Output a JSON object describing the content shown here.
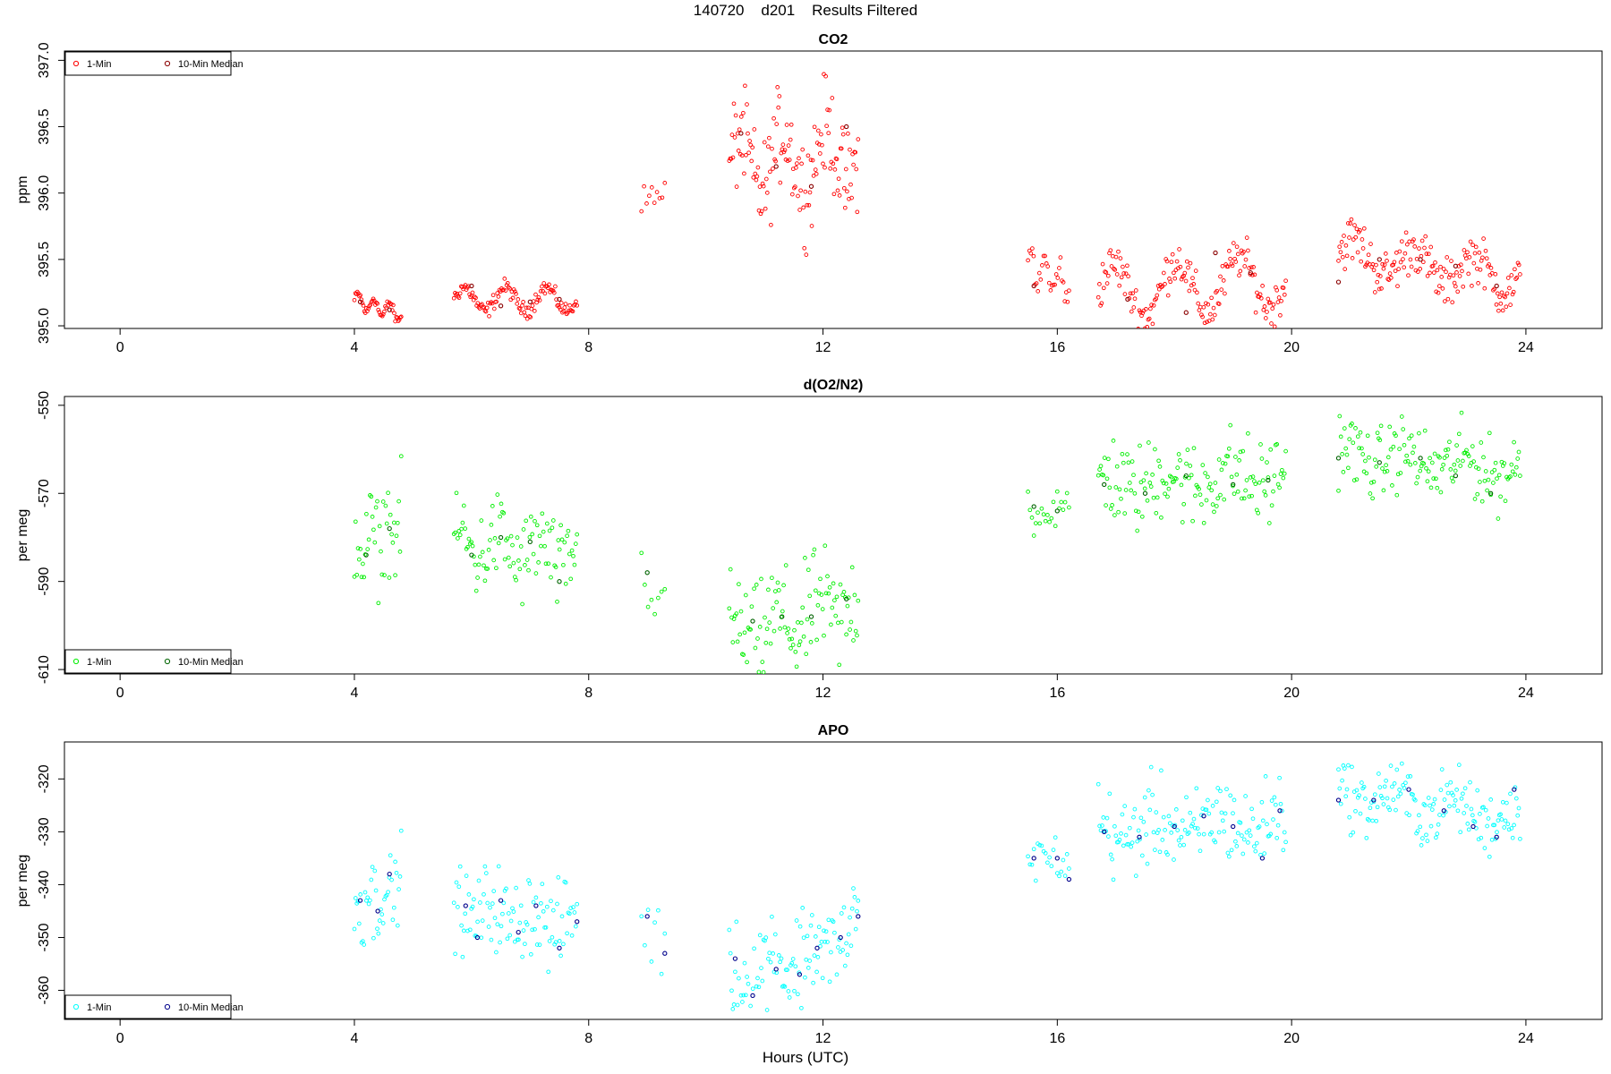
{
  "header": {
    "title": "140720    d201    Results Filtered",
    "x_axis_title": "Hours (UTC)"
  },
  "chart_data": [
    {
      "type": "scatter",
      "title": "CO2",
      "ylabel": "ppm",
      "xlim": [
        -0.95,
        25.3
      ],
      "ylim": [
        394.98,
        397.07
      ],
      "xticks": [
        0,
        4,
        8,
        12,
        16,
        20,
        24
      ],
      "yticks": [
        395.0,
        395.5,
        396.0,
        396.5,
        397.0
      ],
      "ytick_labels": [
        "395.0",
        "395.5",
        "396.0",
        "396.5",
        "397.0"
      ],
      "legend": {
        "position": "top-left",
        "entries": [
          "1-Min",
          "10-Min Median"
        ]
      },
      "colors": {
        "one_min": "#ff0000",
        "median": "#8b0000"
      },
      "series": [
        {
          "name": "1-Min",
          "segments": [
            {
              "x_start": 4.0,
              "x_end": 4.8,
              "count": 48,
              "base": 395.14,
              "amp": 0.06,
              "noise": 0.02,
              "trend": -0.1
            },
            {
              "x_start": 5.7,
              "x_end": 7.8,
              "count": 120,
              "base": 395.2,
              "amp": 0.09,
              "noise": 0.03,
              "trend": 0.0
            },
            {
              "x_start": 8.9,
              "x_end": 9.3,
              "count": 10,
              "base": 395.98,
              "amp": 0.03,
              "noise": 0.04,
              "trend": 0.08
            },
            {
              "x_start": 10.4,
              "x_end": 12.6,
              "count": 140,
              "base": 396.25,
              "amp": 0.22,
              "noise": 0.18,
              "trend": 0.1
            },
            {
              "x_start": 15.5,
              "x_end": 16.2,
              "count": 30,
              "base": 395.38,
              "amp": 0.12,
              "noise": 0.06,
              "trend": -0.15
            },
            {
              "x_start": 16.7,
              "x_end": 19.9,
              "count": 170,
              "base": 395.3,
              "amp": 0.2,
              "noise": 0.08,
              "trend": 0.1
            },
            {
              "x_start": 20.8,
              "x_end": 23.9,
              "count": 170,
              "base": 395.45,
              "amp": 0.12,
              "noise": 0.09,
              "trend": -0.2
            }
          ]
        },
        {
          "name": "10-Min Median",
          "points": [
            [
              4.1,
              395.18
            ],
            [
              4.6,
              395.12
            ],
            [
              6.0,
              395.3
            ],
            [
              6.5,
              395.15
            ],
            [
              7.0,
              395.18
            ],
            [
              7.5,
              395.2
            ],
            [
              10.6,
              396.45
            ],
            [
              11.2,
              396.2
            ],
            [
              11.8,
              396.05
            ],
            [
              12.4,
              396.5
            ],
            [
              15.6,
              395.3
            ],
            [
              17.2,
              395.2
            ],
            [
              18.2,
              395.1
            ],
            [
              18.7,
              395.55
            ],
            [
              19.3,
              395.4
            ],
            [
              20.8,
              395.33
            ],
            [
              21.5,
              395.5
            ],
            [
              22.2,
              395.5
            ],
            [
              22.8,
              395.45
            ],
            [
              23.5,
              395.3
            ]
          ]
        }
      ]
    },
    {
      "type": "scatter",
      "title": "d(O2/N2)",
      "ylabel": "per meg",
      "xlim": [
        -0.95,
        25.3
      ],
      "ylim": [
        -611,
        -548
      ],
      "xticks": [
        0,
        4,
        8,
        12,
        16,
        20,
        24
      ],
      "yticks": [
        -610,
        -590,
        -570,
        -550
      ],
      "ytick_labels": [
        "-610",
        "-590",
        "-570",
        "-550"
      ],
      "legend": {
        "position": "bottom-left",
        "entries": [
          "1-Min",
          "10-Min Median"
        ]
      },
      "colors": {
        "one_min": "#00ee00",
        "median": "#006400"
      },
      "series": [
        {
          "name": "1-Min",
          "segments": [
            {
              "x_start": 4.0,
              "x_end": 4.8,
              "count": 40,
              "base": -580,
              "amp": 3,
              "noise": 5,
              "trend": 6
            },
            {
              "x_start": 5.7,
              "x_end": 7.8,
              "count": 100,
              "base": -583,
              "amp": 3,
              "noise": 5,
              "trend": -4
            },
            {
              "x_start": 8.9,
              "x_end": 9.3,
              "count": 8,
              "base": -591,
              "amp": 2,
              "noise": 4,
              "trend": -4
            },
            {
              "x_start": 10.4,
              "x_end": 12.6,
              "count": 110,
              "base": -599,
              "amp": 3,
              "noise": 6,
              "trend": 8
            },
            {
              "x_start": 15.5,
              "x_end": 16.2,
              "count": 22,
              "base": -574,
              "amp": 2,
              "noise": 3,
              "trend": 0
            },
            {
              "x_start": 16.7,
              "x_end": 19.9,
              "count": 150,
              "base": -567,
              "amp": 2,
              "noise": 5,
              "trend": 2
            },
            {
              "x_start": 20.8,
              "x_end": 23.9,
              "count": 150,
              "base": -563,
              "amp": 2,
              "noise": 4,
              "trend": -4
            }
          ]
        },
        {
          "name": "10-Min Median",
          "points": [
            [
              4.2,
              -584
            ],
            [
              4.6,
              -578
            ],
            [
              6.0,
              -584
            ],
            [
              6.5,
              -580
            ],
            [
              7.0,
              -581
            ],
            [
              7.5,
              -590
            ],
            [
              9.0,
              -588
            ],
            [
              10.8,
              -599
            ],
            [
              11.3,
              -598
            ],
            [
              11.8,
              -598
            ],
            [
              12.4,
              -594
            ],
            [
              15.6,
              -573
            ],
            [
              16.0,
              -574
            ],
            [
              16.8,
              -568
            ],
            [
              17.5,
              -570
            ],
            [
              18.2,
              -566
            ],
            [
              19.0,
              -568
            ],
            [
              19.6,
              -567
            ],
            [
              20.8,
              -562
            ],
            [
              21.5,
              -563
            ],
            [
              22.2,
              -562
            ],
            [
              22.8,
              -566
            ],
            [
              23.4,
              -570
            ]
          ]
        }
      ]
    },
    {
      "type": "scatter",
      "title": "APO",
      "ylabel": "per meg",
      "xlim": [
        -0.95,
        25.3
      ],
      "ylim": [
        -365.5,
        -313
      ],
      "xticks": [
        0,
        4,
        8,
        12,
        16,
        20,
        24
      ],
      "yticks": [
        -360,
        -350,
        -340,
        -330,
        -320
      ],
      "ytick_labels": [
        "-360",
        "-350",
        "-340",
        "-330",
        "-320"
      ],
      "legend": {
        "position": "bottom-left",
        "entries": [
          "1-Min",
          "10-Min Median"
        ]
      },
      "colors": {
        "one_min": "#00ffff",
        "median": "#00008b"
      },
      "series": [
        {
          "name": "1-Min",
          "segments": [
            {
              "x_start": 4.0,
              "x_end": 4.8,
              "count": 40,
              "base": -342,
              "amp": 2,
              "noise": 4,
              "trend": 3
            },
            {
              "x_start": 5.7,
              "x_end": 7.8,
              "count": 100,
              "base": -346,
              "amp": 2,
              "noise": 4,
              "trend": -3
            },
            {
              "x_start": 8.9,
              "x_end": 9.3,
              "count": 8,
              "base": -349,
              "amp": 2,
              "noise": 3,
              "trend": -4
            },
            {
              "x_start": 10.4,
              "x_end": 12.6,
              "count": 110,
              "base": -354,
              "amp": 2,
              "noise": 5,
              "trend": 8
            },
            {
              "x_start": 15.5,
              "x_end": 16.2,
              "count": 22,
              "base": -335,
              "amp": 1,
              "noise": 2,
              "trend": -2
            },
            {
              "x_start": 16.7,
              "x_end": 19.9,
              "count": 150,
              "base": -329,
              "amp": 2,
              "noise": 4,
              "trend": 2
            },
            {
              "x_start": 20.8,
              "x_end": 23.9,
              "count": 150,
              "base": -325,
              "amp": 2,
              "noise": 3,
              "trend": -5
            }
          ]
        },
        {
          "name": "10-Min Median",
          "points": [
            [
              4.1,
              -343
            ],
            [
              4.4,
              -345
            ],
            [
              4.6,
              -338
            ],
            [
              5.9,
              -344
            ],
            [
              6.1,
              -350
            ],
            [
              6.5,
              -343
            ],
            [
              6.8,
              -349
            ],
            [
              7.1,
              -344
            ],
            [
              7.5,
              -352
            ],
            [
              7.8,
              -347
            ],
            [
              9.0,
              -346
            ],
            [
              9.3,
              -353
            ],
            [
              10.5,
              -354
            ],
            [
              10.8,
              -361
            ],
            [
              11.2,
              -356
            ],
            [
              11.6,
              -357
            ],
            [
              11.9,
              -352
            ],
            [
              12.3,
              -350
            ],
            [
              12.6,
              -346
            ],
            [
              15.6,
              -335
            ],
            [
              16.0,
              -335
            ],
            [
              16.2,
              -339
            ],
            [
              16.8,
              -330
            ],
            [
              17.4,
              -331
            ],
            [
              18.0,
              -329
            ],
            [
              18.5,
              -327
            ],
            [
              19.0,
              -329
            ],
            [
              19.5,
              -335
            ],
            [
              19.8,
              -326
            ],
            [
              20.8,
              -324
            ],
            [
              21.4,
              -324
            ],
            [
              22.0,
              -322
            ],
            [
              22.6,
              -326
            ],
            [
              23.1,
              -329
            ],
            [
              23.5,
              -331
            ],
            [
              23.8,
              -322
            ]
          ]
        }
      ]
    }
  ]
}
